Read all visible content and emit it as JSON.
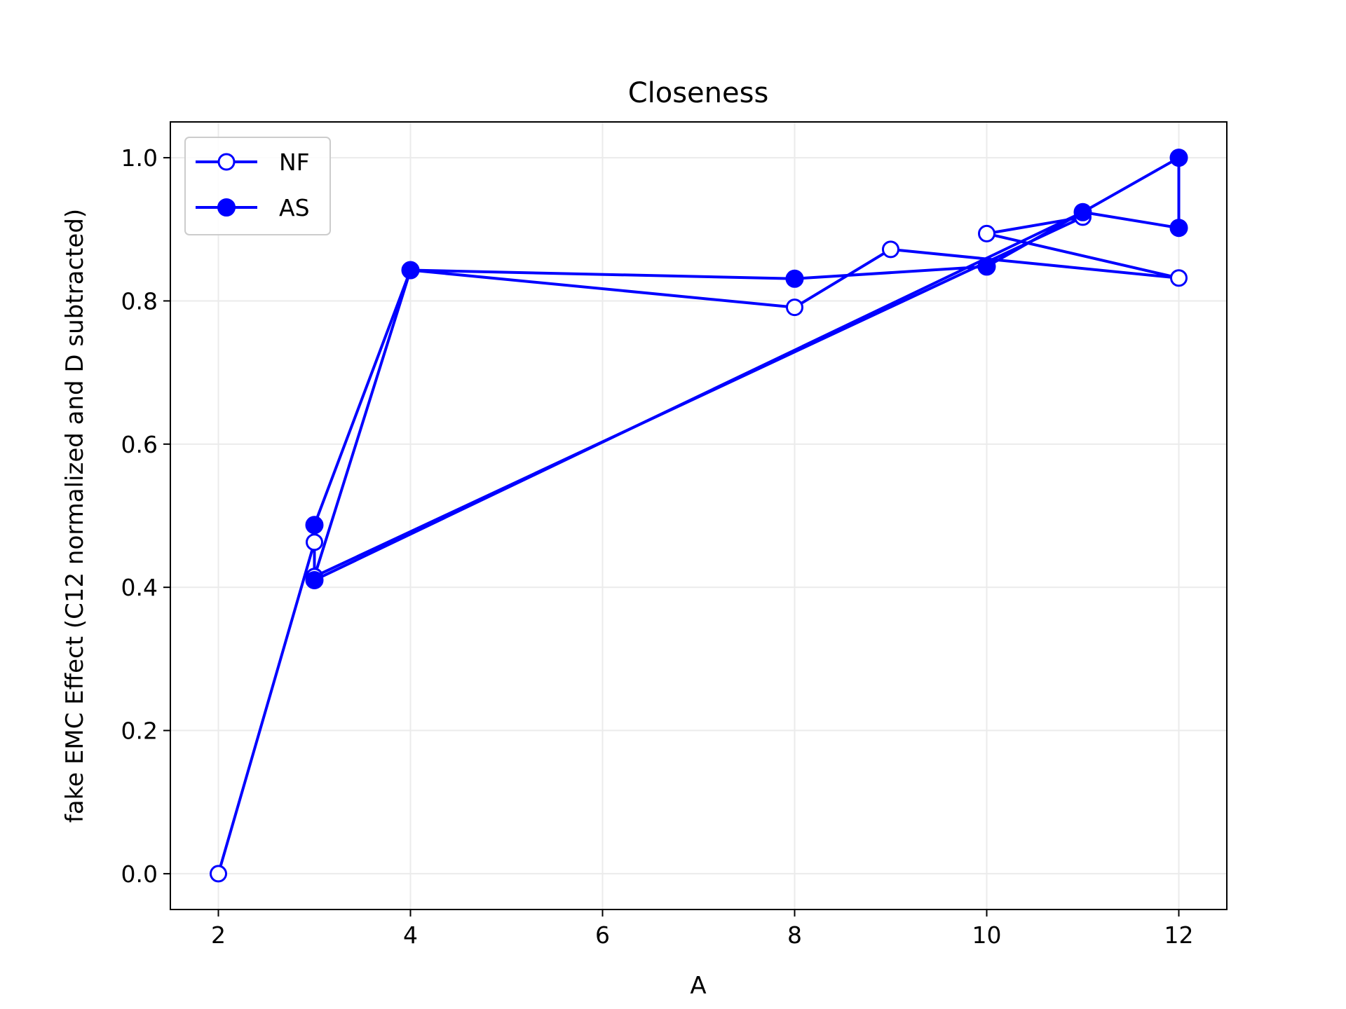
{
  "chart_data": {
    "type": "line",
    "title": "Closeness",
    "xlabel": "A",
    "ylabel": "fake EMC Effect (C12 normalized and D subtracted)",
    "xlim": [
      1.5,
      12.5
    ],
    "ylim": [
      -0.05,
      1.05
    ],
    "xticks": [
      2,
      4,
      6,
      8,
      10,
      12
    ],
    "yticks": [
      0.0,
      0.2,
      0.4,
      0.6,
      0.8,
      1.0
    ],
    "xtick_labels": [
      "2",
      "4",
      "6",
      "8",
      "10",
      "12"
    ],
    "ytick_labels": [
      "0.0",
      "0.2",
      "0.4",
      "0.6",
      "0.8",
      "1.0"
    ],
    "grid": true,
    "legend_position": "upper-left",
    "color": "#0000ff",
    "series": [
      {
        "name": "NF",
        "marker": "open-circle",
        "x": [
          2,
          3,
          3,
          4,
          8,
          9,
          12,
          10,
          11,
          3
        ],
        "y": [
          0.0,
          0.463,
          0.415,
          0.843,
          0.791,
          0.872,
          0.832,
          0.894,
          0.917,
          0.415
        ]
      },
      {
        "name": "AS",
        "marker": "filled-circle",
        "x": [
          3,
          4,
          8,
          10,
          12,
          12,
          11,
          3
        ],
        "y": [
          0.487,
          0.843,
          0.831,
          0.848,
          1.0,
          0.902,
          0.924,
          0.41
        ]
      }
    ]
  }
}
